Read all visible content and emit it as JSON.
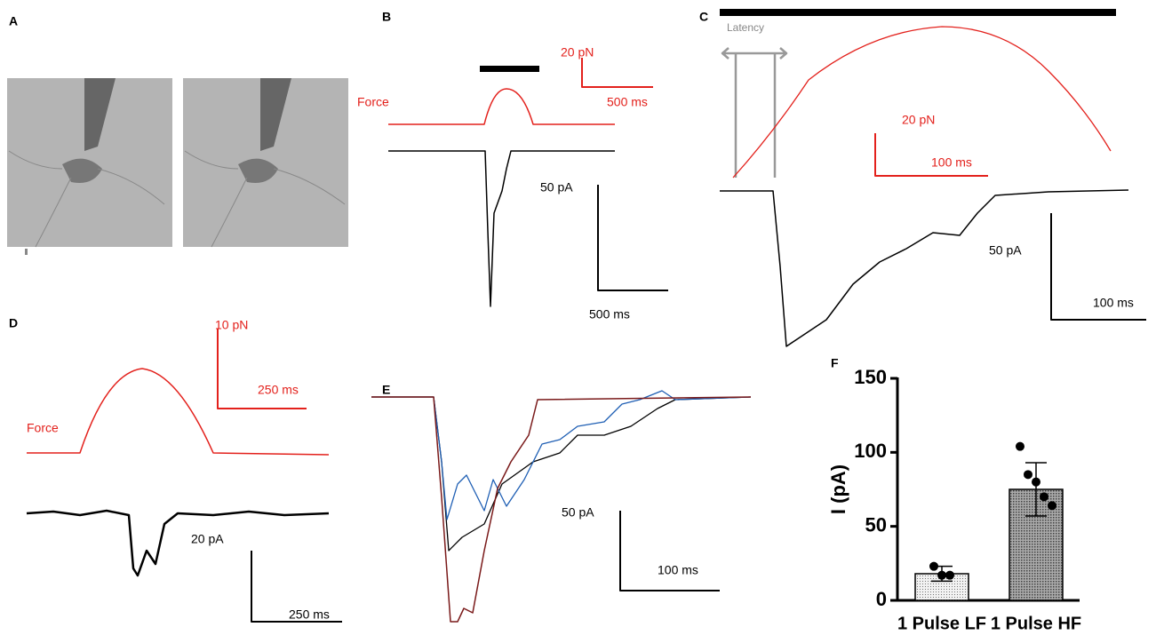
{
  "panels": {
    "A": {
      "label": "A"
    },
    "B": {
      "label": "B",
      "force": "Force",
      "force_scale_y": "20 pN",
      "force_scale_x": "500 ms",
      "current_scale_y": "50 pA",
      "current_scale_x": "500 ms"
    },
    "C": {
      "label": "C",
      "latency": "Latency",
      "force_scale_y": "20 pN",
      "force_scale_x": "100 ms",
      "current_scale_y": "50 pA",
      "current_scale_x": "100 ms"
    },
    "D": {
      "label": "D",
      "force": "Force",
      "force_scale_y": "10 pN",
      "force_scale_x": "250 ms",
      "current_scale_y": "20 pA",
      "current_scale_x": "250 ms"
    },
    "E": {
      "label": "E",
      "current_scale_y": "50 pA",
      "current_scale_x": "100 ms"
    },
    "F": {
      "label": "F"
    }
  },
  "chart_data": {
    "type": "bar",
    "y_label": "I (pA)",
    "categories": [
      "1 Pulse LF",
      "1 Pulse HF"
    ],
    "values": [
      18,
      75
    ],
    "errors": [
      5,
      18
    ],
    "points": [
      [
        23,
        17,
        17
      ],
      [
        104,
        85,
        80,
        70,
        64
      ]
    ],
    "color": "#d8d8d8",
    "ylim": [
      0,
      150
    ],
    "yticks": [
      0,
      50,
      100,
      150
    ]
  }
}
